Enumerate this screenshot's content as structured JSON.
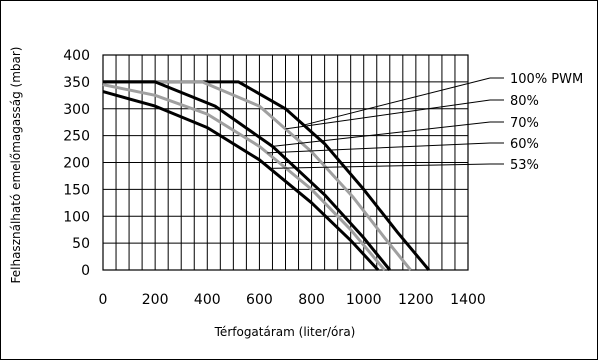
{
  "chart_data": {
    "type": "line",
    "xlabel": "Térfogatáram (liter/óra)",
    "ylabel": "Felhasználható emelőmagasság (mbar)",
    "xlim": [
      0,
      1400
    ],
    "ylim": [
      0,
      400
    ],
    "xticks": [
      "0",
      "200",
      "400",
      "600",
      "800",
      "1000",
      "1200",
      "1400"
    ],
    "yticks": [
      "0",
      "50",
      "100",
      "150",
      "200",
      "250",
      "300",
      "350",
      "400"
    ],
    "grid": true,
    "series": [
      {
        "name": "100% PWM",
        "color": "#000000",
        "points": [
          [
            0,
            350
          ],
          [
            520,
            350
          ],
          [
            700,
            300
          ],
          [
            850,
            235
          ],
          [
            1000,
            150
          ],
          [
            1130,
            70
          ],
          [
            1250,
            0
          ]
        ]
      },
      {
        "name": "80%",
        "color": "#a0a0a0",
        "points": [
          [
            0,
            350
          ],
          [
            380,
            350
          ],
          [
            600,
            305
          ],
          [
            800,
            220
          ],
          [
            960,
            135
          ],
          [
            1080,
            60
          ],
          [
            1180,
            0
          ]
        ]
      },
      {
        "name": "70%",
        "color": "#000000",
        "points": [
          [
            0,
            350
          ],
          [
            200,
            350
          ],
          [
            430,
            305
          ],
          [
            650,
            230
          ],
          [
            850,
            140
          ],
          [
            1000,
            60
          ],
          [
            1100,
            0
          ]
        ]
      },
      {
        "name": "60%",
        "color": "#a0a0a0",
        "points": [
          [
            0,
            345
          ],
          [
            200,
            325
          ],
          [
            400,
            290
          ],
          [
            600,
            230
          ],
          [
            800,
            150
          ],
          [
            950,
            75
          ],
          [
            1080,
            0
          ]
        ]
      },
      {
        "name": "53%",
        "color": "#000000",
        "points": [
          [
            0,
            332
          ],
          [
            200,
            305
          ],
          [
            400,
            265
          ],
          [
            600,
            205
          ],
          [
            800,
            125
          ],
          [
            950,
            55
          ],
          [
            1055,
            0
          ]
        ]
      }
    ]
  }
}
